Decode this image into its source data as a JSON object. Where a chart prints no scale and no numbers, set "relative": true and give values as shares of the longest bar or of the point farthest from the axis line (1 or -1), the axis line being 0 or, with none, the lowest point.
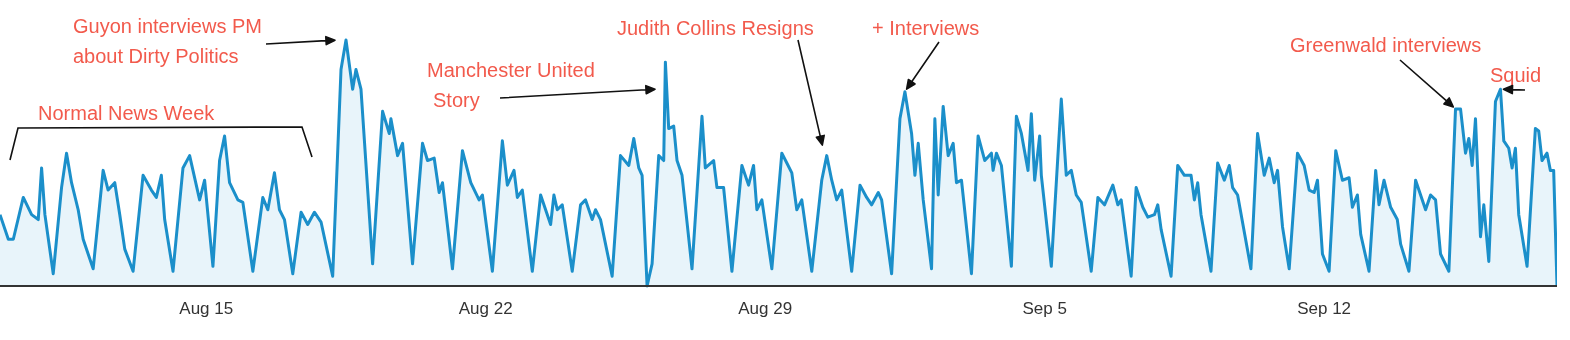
{
  "chart_data": {
    "type": "area",
    "relative": true,
    "xlim": [
      "--08-09T20:00",
      "--09-17T20:00"
    ],
    "xticks": [
      {
        "value": "--08-15",
        "label": "Aug 15"
      },
      {
        "value": "--08-22",
        "label": "Aug 22"
      },
      {
        "value": "--08-29",
        "label": "Aug 29"
      },
      {
        "value": "--09-05",
        "label": "Sep 5"
      },
      {
        "value": "--09-12",
        "label": "Sep 12"
      }
    ],
    "annotations": [
      "Normal News Week",
      "Guyon interviews PM\nabout Dirty Politics",
      "Manchester United\nStory",
      "Judith Collins Resigns",
      {
        "text": "+ Interviews",
        "x": "--09-01T12:00",
        "y": 0.79
      },
      {
        "text": "Greenwald interviews",
        "x": "--09-15T07:00",
        "y": 0.72
      },
      {
        "text": "Squid",
        "x": "--09-16T10:00",
        "y": 0.8
      }
    ],
    "series": [
      {
        "color": "#1b8fca",
        "x": [
          "--08-09T20:00",
          "--08-10T01:00",
          "--08-10T04:00",
          "--08-10T10:00",
          "--08-10T15:00",
          "--08-10T19:00",
          "--08-10T21:00",
          "--08-10T23:00",
          "--08-11T04:00",
          "--08-11T09:00",
          "--08-11T12:00",
          "--08-11T15:00",
          "--08-11T19:00",
          "--08-11T22:00",
          "--08-12T04:00",
          "--08-12T10:00",
          "--08-12T13:00",
          "--08-12T17:00",
          "--08-12T20:00",
          "--08-12T23:00",
          "--08-13T04:00",
          "--08-13T10:00",
          "--08-13T15:00",
          "--08-13T18:00",
          "--08-13T21:00",
          "--08-13T23:00",
          "--08-14T04:00",
          "--08-14T10:00",
          "--08-14T14:00",
          "--08-14T20:00",
          "--08-14T23:00",
          "--08-15T04:00",
          "--08-15T08:00",
          "--08-15T11:00",
          "--08-15T14:00",
          "--08-15T19:00",
          "--08-15T22:00",
          "--08-16T04:00",
          "--08-16T10:00",
          "--08-16T13:00",
          "--08-16T17:00",
          "--08-16T20:00",
          "--08-16T23:00",
          "--08-17T04:00",
          "--08-17T09:00",
          "--08-17T13:00",
          "--08-17T17:00",
          "--08-17T21:00",
          "--08-18T04:00",
          "--08-18T09:00",
          "--08-18T12:00",
          "--08-18T16:00",
          "--08-18T18:00",
          "--08-18T21:00",
          "--08-19T04:00",
          "--08-19T10:00",
          "--08-19T14:00",
          "--08-19T15:00",
          "--08-19T19:00",
          "--08-19T22:00",
          "--08-20T04:00",
          "--08-20T10:00",
          "--08-20T13:00",
          "--08-20T17:00",
          "--08-20T20:00",
          "--08-20T22:00",
          "--08-21T04:00",
          "--08-21T10:00",
          "--08-21T15:00",
          "--08-21T20:00",
          "--08-21T22:00",
          "--08-22T04:00",
          "--08-22T10:00",
          "--08-22T13:00",
          "--08-22T17:00",
          "--08-22T19:00",
          "--08-22T22:00",
          "--08-23T04:00",
          "--08-23T09:00",
          "--08-23T15:00",
          "--08-23T17:00",
          "--08-23T19:00",
          "--08-23T22:00",
          "--08-24T04:00",
          "--08-24T09:00",
          "--08-24T12:00",
          "--08-24T16:00",
          "--08-24T18:00",
          "--08-24T21:00",
          "--08-25T04:00",
          "--08-25T09:00",
          "--08-25T14:00",
          "--08-25T17:00",
          "--08-25T20:00",
          "--08-25T22:00",
          "--08-26T01:00",
          "--08-26T04:00",
          "--08-26T08:00",
          "--08-26T11:00",
          "--08-26T12:00",
          "--08-26T14:00",
          "--08-26T17:00",
          "--08-26T19:00",
          "--08-26T22:00",
          "--08-27T04:00",
          "--08-27T10:00",
          "--08-27T12:00",
          "--08-27T17:00",
          "--08-27T19:00",
          "--08-27T23:00",
          "--08-28T04:00",
          "--08-28T10:00",
          "--08-28T14:00",
          "--08-28T17:00",
          "--08-28T19:00",
          "--08-28T22:00",
          "--08-29T04:00",
          "--08-29T10:00",
          "--08-29T13:00",
          "--08-29T16:00",
          "--08-29T19:00",
          "--08-29T22:00",
          "--08-30T04:00",
          "--08-30T10:00",
          "--08-30T13:00",
          "--08-30T16:00",
          "--08-30T19:00",
          "--08-30T22:00",
          "--08-31T04:00",
          "--08-31T09:00",
          "--08-31T13:00",
          "--08-31T16:00",
          "--08-31T20:00",
          "--08-31T22:00",
          "--09-01T04:00",
          "--09-01T09:00",
          "--09-01T12:00",
          "--09-01T16:00",
          "--09-01T18:00",
          "--09-01T20:00",
          "--09-01T23:00",
          "--09-02T04:00",
          "--09-02T06:00",
          "--09-02T08:00",
          "--09-02T11:00",
          "--09-02T14:00",
          "--09-02T17:00",
          "--09-02T19:00",
          "--09-02T22:00",
          "--09-03T04:00",
          "--09-03T08:00",
          "--09-03T12:00",
          "--09-03T16:00",
          "--09-03T17:00",
          "--09-03T19:00",
          "--09-03T22:00",
          "--09-04T04:00",
          "--09-04T07:00",
          "--09-04T10:00",
          "--09-04T14:00",
          "--09-04T16:00",
          "--09-04T18:00",
          "--09-04T21:00",
          "--09-04T22:00",
          "--09-05T04:00",
          "--09-05T10:00",
          "--09-05T13:00",
          "--09-05T16:00",
          "--09-05T19:00",
          "--09-05T22:00",
          "--09-06T04:00",
          "--09-06T08:00",
          "--09-06T12:00",
          "--09-06T17:00",
          "--09-06T20:00",
          "--09-06T22:00",
          "--09-07T04:00",
          "--09-07T07:00",
          "--09-07T11:00",
          "--09-07T14:00",
          "--09-07T18:00",
          "--09-07T20:00",
          "--09-07T22:00",
          "--09-08T04:00",
          "--09-08T08:00",
          "--09-08T12:00",
          "--09-08T16:00",
          "--09-08T18:00",
          "--09-08T20:00",
          "--09-08T22:00",
          "--09-09T04:00",
          "--09-09T08:00",
          "--09-09T12:00",
          "--09-09T15:00",
          "--09-09T17:00",
          "--09-09T20:00",
          "--09-10T04:00",
          "--09-10T08:00",
          "--09-10T12:00",
          "--09-10T15:00",
          "--09-10T18:00",
          "--09-10T20:00",
          "--09-10T23:00",
          "--09-11T03:00",
          "--09-11T08:00",
          "--09-11T12:00",
          "--09-11T15:00",
          "--09-11T18:00",
          "--09-11T20:00",
          "--09-11T23:00",
          "--09-12T03:00",
          "--09-12T07:00",
          "--09-12T11:00",
          "--09-12T15:00",
          "--09-12T17:00",
          "--09-12T20:00",
          "--09-12T22:00",
          "--09-13T03:00",
          "--09-13T07:00",
          "--09-13T09:00",
          "--09-13T12:00",
          "--09-13T16:00",
          "--09-13T20:00",
          "--09-13T22:00",
          "--09-14T03:00",
          "--09-14T07:00",
          "--09-14T13:00",
          "--09-14T16:00",
          "--09-14T19:00",
          "--09-14T22:00",
          "--09-15T03:00",
          "--09-15T07:00",
          "--09-15T10:00",
          "--09-15T13:00",
          "--09-15T15:00",
          "--09-15T17:00",
          "--09-15T19:00",
          "--09-15T22:00",
          "--09-16T00:00",
          "--09-16T03:00",
          "--09-16T07:00",
          "--09-16T10:00",
          "--09-16T12:00",
          "--09-16T15:00",
          "--09-16T17:00",
          "--09-16T19:00",
          "--09-16T21:00",
          "--09-17T02:00",
          "--09-17T07:00",
          "--09-17T09:00",
          "--09-17T11:00",
          "--09-17T14:00",
          "--09-17T16:00",
          "--09-17T18:00",
          "--09-17T20:00"
        ],
        "values": [
          0.29,
          0.19,
          0.19,
          0.36,
          0.29,
          0.27,
          0.48,
          0.29,
          0.05,
          0.4,
          0.54,
          0.42,
          0.31,
          0.19,
          0.07,
          0.47,
          0.39,
          0.42,
          0.29,
          0.15,
          0.06,
          0.45,
          0.39,
          0.36,
          0.45,
          0.27,
          0.06,
          0.48,
          0.53,
          0.35,
          0.43,
          0.08,
          0.51,
          0.61,
          0.42,
          0.35,
          0.34,
          0.06,
          0.36,
          0.31,
          0.46,
          0.31,
          0.27,
          0.05,
          0.3,
          0.25,
          0.3,
          0.26,
          0.04,
          0.88,
          1,
          0.8,
          0.88,
          0.8,
          0.09,
          0.71,
          0.62,
          0.68,
          0.53,
          0.58,
          0.09,
          0.58,
          0.51,
          0.52,
          0.38,
          0.42,
          0.07,
          0.55,
          0.42,
          0.35,
          0.37,
          0.06,
          0.59,
          0.41,
          0.47,
          0.36,
          0.39,
          0.06,
          0.37,
          0.25,
          0.37,
          0.31,
          0.33,
          0.06,
          0.33,
          0.35,
          0.27,
          0.31,
          0.27,
          0.04,
          0.53,
          0.49,
          0.6,
          0.48,
          0.45,
          0,
          0.09,
          0.53,
          0.51,
          0.91,
          0.64,
          0.65,
          0.51,
          0.45,
          0.07,
          0.69,
          0.48,
          0.51,
          0.4,
          0.4,
          0.06,
          0.49,
          0.41,
          0.49,
          0.31,
          0.35,
          0.07,
          0.54,
          0.5,
          0.46,
          0.31,
          0.35,
          0.06,
          0.43,
          0.53,
          0.43,
          0.35,
          0.39,
          0.06,
          0.41,
          0.36,
          0.33,
          0.38,
          0.35,
          0.05,
          0.68,
          0.79,
          0.62,
          0.45,
          0.58,
          0.35,
          0.07,
          0.68,
          0.37,
          0.73,
          0.53,
          0.58,
          0.42,
          0.43,
          0.05,
          0.61,
          0.51,
          0.54,
          0.47,
          0.54,
          0.49,
          0.08,
          0.69,
          0.62,
          0.47,
          0.7,
          0.43,
          0.61,
          0.45,
          0.08,
          0.76,
          0.45,
          0.47,
          0.37,
          0.34,
          0.06,
          0.36,
          0.33,
          0.41,
          0.33,
          0.35,
          0.04,
          0.4,
          0.32,
          0.28,
          0.29,
          0.33,
          0.23,
          0.04,
          0.49,
          0.45,
          0.45,
          0.35,
          0.42,
          0.29,
          0.06,
          0.5,
          0.43,
          0.49,
          0.4,
          0.37,
          0.07,
          0.62,
          0.45,
          0.52,
          0.42,
          0.47,
          0.24,
          0.07,
          0.54,
          0.49,
          0.39,
          0.38,
          0.43,
          0.13,
          0.06,
          0.55,
          0.43,
          0.44,
          0.32,
          0.37,
          0.21,
          0.06,
          0.47,
          0.33,
          0.43,
          0.32,
          0.27,
          0.17,
          0.06,
          0.43,
          0.31,
          0.37,
          0.35,
          0.13,
          0.06,
          0.72,
          0.72,
          0.54,
          0.6,
          0.49,
          0.68,
          0.2,
          0.33,
          0.1,
          0.75,
          0.8,
          0.59,
          0.56,
          0.48,
          0.56,
          0.29,
          0.08,
          0.64,
          0.63,
          0.51,
          0.54,
          0.47,
          0.47,
          0
        ]
      }
    ]
  }
}
